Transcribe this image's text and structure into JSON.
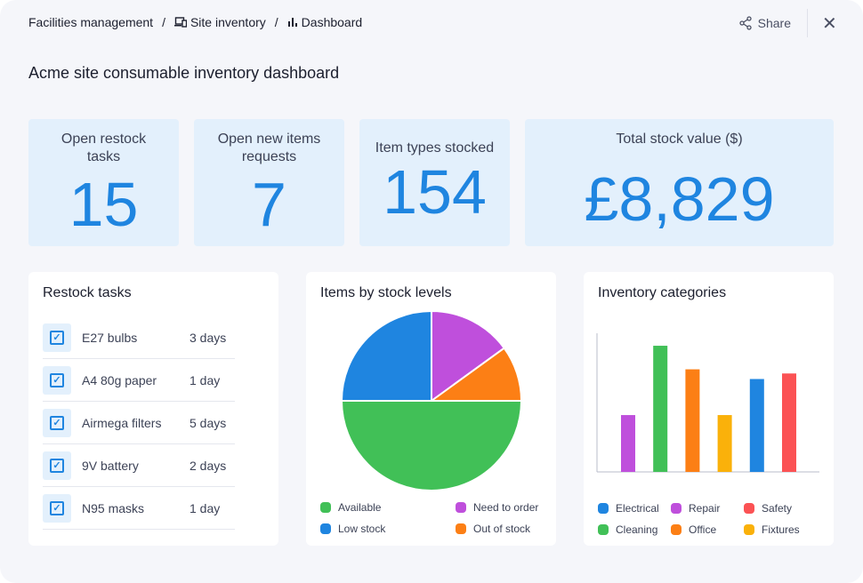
{
  "breadcrumb": {
    "items": [
      "Facilities management",
      "Site inventory",
      "Dashboard"
    ]
  },
  "actions": {
    "share": "Share"
  },
  "title": "Acme site consumable inventory dashboard",
  "stats": [
    {
      "label": "Open restock tasks",
      "value": "15"
    },
    {
      "label": "Open new items requests",
      "value": "7"
    },
    {
      "label": "Item types stocked",
      "value": "154"
    },
    {
      "label": "Total stock value ($)",
      "value": "£8,829"
    }
  ],
  "restock": {
    "title": "Restock tasks",
    "tasks": [
      {
        "name": "E27 bulbs",
        "due": "3 days"
      },
      {
        "name": "A4 80g paper",
        "due": "1 day"
      },
      {
        "name": "Airmega filters",
        "due": "5 days"
      },
      {
        "name": "9V battery",
        "due": "2 days"
      },
      {
        "name": "N95 masks",
        "due": "1 day"
      }
    ]
  },
  "chart_data": [
    {
      "type": "pie",
      "title": "Items by stock levels",
      "slices": [
        {
          "label": "Need to order",
          "value": 15,
          "color": "#bf4fdc"
        },
        {
          "label": "Out of stock",
          "value": 10,
          "color": "#fc7f15"
        },
        {
          "label": "Available",
          "value": 50,
          "color": "#41c057"
        },
        {
          "label": "Low stock",
          "value": 25,
          "color": "#1f85e0"
        }
      ],
      "legend_order": [
        "Available",
        "Need to order",
        "Low stock",
        "Out of stock"
      ]
    },
    {
      "type": "bar",
      "title": "Inventory categories",
      "categories": [
        "Repair",
        "Cleaning",
        "Office",
        "Fixtures",
        "Electrical",
        "Safety"
      ],
      "values": [
        41,
        91,
        74,
        41,
        67,
        71
      ],
      "colors": [
        "#bf4fdc",
        "#41c057",
        "#fc7f15",
        "#fab10a",
        "#1f85e0",
        "#fb5254"
      ],
      "ylim": [
        0,
        100
      ],
      "legend_order": [
        "Electrical",
        "Repair",
        "Safety",
        "Cleaning",
        "Office",
        "Fixtures"
      ]
    }
  ]
}
